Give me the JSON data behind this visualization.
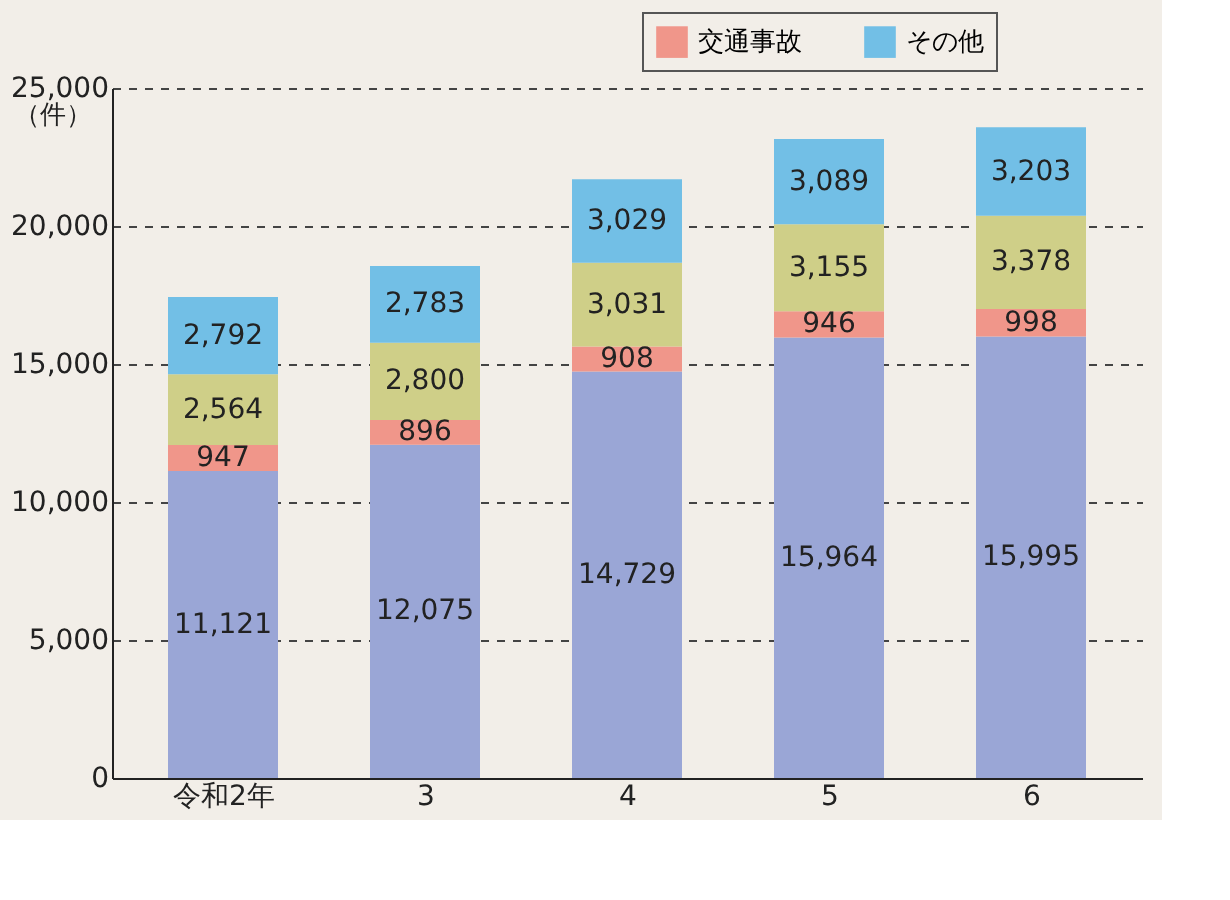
{
  "chart_data": {
    "type": "bar",
    "stacked": true,
    "categories": [
      "令和2年",
      "3",
      "4",
      "5",
      "6"
    ],
    "ylabel": "（件）",
    "series": [
      {
        "color": "#9aa6d6",
        "values": [
          11121,
          12075,
          14729,
          15964,
          15995
        ],
        "value_labels": [
          "11,121",
          "12,075",
          "14,729",
          "15,964",
          "15,995"
        ]
      },
      {
        "name": "交通事故",
        "color": "#f0968a",
        "values": [
          947,
          896,
          908,
          946,
          998
        ],
        "value_labels": [
          "947",
          "896",
          "908",
          "946",
          "998"
        ]
      },
      {
        "color": "#cfcf88",
        "values": [
          2564,
          2800,
          3031,
          3155,
          3378
        ],
        "value_labels": [
          "2,564",
          "2,800",
          "3,031",
          "3,155",
          "3,378"
        ]
      },
      {
        "name": "その他",
        "color": "#72bfe6",
        "values": [
          2792,
          2783,
          3029,
          3089,
          3203
        ],
        "value_labels": [
          "2,792",
          "2,783",
          "3,029",
          "3,089",
          "3,203"
        ]
      }
    ],
    "ylim": [
      0,
      25000
    ],
    "yticks": [
      0,
      {
        "value": 5000,
        "label": "5,000"
      },
      {
        "value": 10000,
        "label": "10,000"
      },
      {
        "value": 15000,
        "label": "15,000"
      },
      {
        "value": 20000,
        "label": "20,000"
      },
      {
        "value": 25000,
        "label": "25,000"
      }
    ],
    "grid": "y",
    "legend": "top right"
  }
}
